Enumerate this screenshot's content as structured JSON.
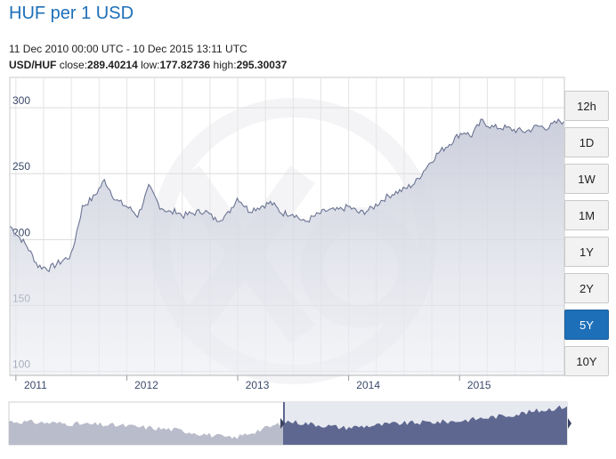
{
  "header": {
    "title": "HUF per 1 USD",
    "range": "11 Dec 2010 00:00 UTC - 10 Dec 2015 13:11 UTC",
    "pair": "USD/HUF",
    "close_label": "close:",
    "close_value": "289.40214",
    "low_label": "low:",
    "low_value": "177.82736",
    "high_label": "high:",
    "high_value": "295.30037"
  },
  "range_buttons": [
    {
      "label": "12h",
      "active": false
    },
    {
      "label": "1D",
      "active": false
    },
    {
      "label": "1W",
      "active": false
    },
    {
      "label": "1M",
      "active": false
    },
    {
      "label": "1Y",
      "active": false
    },
    {
      "label": "2Y",
      "active": false
    },
    {
      "label": "5Y",
      "active": true
    },
    {
      "label": "10Y",
      "active": false
    }
  ],
  "colors": {
    "accent": "#1d6fb8",
    "line": "#6b7493",
    "area": "#d9dbe6",
    "nav_left": "#b9bccb",
    "nav_right": "#5e6790"
  },
  "chart_data": {
    "type": "area",
    "yticks": [
      100,
      150,
      200,
      250,
      300
    ],
    "xticks": [
      "2011",
      "2012",
      "2013",
      "2014",
      "2015"
    ],
    "ylim": [
      97,
      323
    ],
    "xlim": [
      2010.945,
      2015.945
    ],
    "grid": true,
    "x": [
      2010.95,
      2011.0,
      2011.1,
      2011.2,
      2011.3,
      2011.4,
      2011.5,
      2011.6,
      2011.7,
      2011.8,
      2011.9,
      2012.0,
      2012.05,
      2012.1,
      2012.2,
      2012.3,
      2012.4,
      2012.45,
      2012.5,
      2012.6,
      2012.7,
      2012.8,
      2012.9,
      2013.0,
      2013.1,
      2013.2,
      2013.3,
      2013.4,
      2013.5,
      2013.6,
      2013.7,
      2013.8,
      2013.9,
      2014.0,
      2014.1,
      2014.2,
      2014.3,
      2014.4,
      2014.5,
      2014.6,
      2014.7,
      2014.8,
      2014.9,
      2015.0,
      2015.05,
      2015.1,
      2015.2,
      2015.3,
      2015.4,
      2015.5,
      2015.6,
      2015.7,
      2015.8,
      2015.9,
      2015.94
    ],
    "y": [
      210,
      205,
      195,
      180,
      178,
      183,
      188,
      225,
      232,
      245,
      230,
      225,
      222,
      218,
      240,
      225,
      220,
      222,
      218,
      220,
      222,
      215,
      218,
      232,
      222,
      225,
      228,
      220,
      220,
      213,
      218,
      222,
      222,
      225,
      220,
      223,
      230,
      235,
      238,
      243,
      255,
      265,
      272,
      280,
      282,
      278,
      290,
      285,
      285,
      283,
      282,
      286,
      285,
      290,
      289.4
    ]
  }
}
